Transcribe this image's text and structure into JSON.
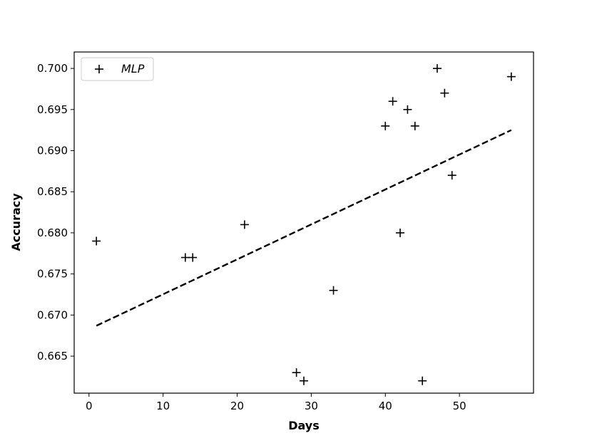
{
  "chart_data": {
    "type": "scatter",
    "title": "",
    "xlabel": "Days",
    "ylabel": "Accuracy",
    "xlim": [
      -2,
      60
    ],
    "ylim": [
      0.6605,
      0.702
    ],
    "xticks": [
      0,
      10,
      20,
      30,
      40,
      50
    ],
    "yticks": [
      0.665,
      0.67,
      0.675,
      0.68,
      0.685,
      0.69,
      0.695,
      0.7
    ],
    "xtick_labels": [
      "0",
      "10",
      "20",
      "30",
      "40",
      "50"
    ],
    "ytick_labels": [
      "0.665",
      "0.670",
      "0.675",
      "0.680",
      "0.685",
      "0.690",
      "0.695",
      "0.700"
    ],
    "grid": false,
    "legend": {
      "placement": "top-left",
      "entries": [
        "MLP"
      ]
    },
    "series": [
      {
        "name": "MLP",
        "marker": "+",
        "color": "#000000",
        "x": [
          1,
          13,
          14,
          21,
          28,
          29,
          33,
          40,
          41,
          42,
          43,
          44,
          45,
          47,
          48,
          49,
          57
        ],
        "y": [
          0.679,
          0.677,
          0.677,
          0.681,
          0.663,
          0.662,
          0.673,
          0.693,
          0.696,
          0.68,
          0.695,
          0.693,
          0.662,
          0.7,
          0.697,
          0.687,
          0.699
        ]
      }
    ],
    "trend_line": {
      "style": "dashed",
      "color": "#000000",
      "x": [
        1,
        57
      ],
      "y": [
        0.6687,
        0.6925
      ]
    }
  }
}
